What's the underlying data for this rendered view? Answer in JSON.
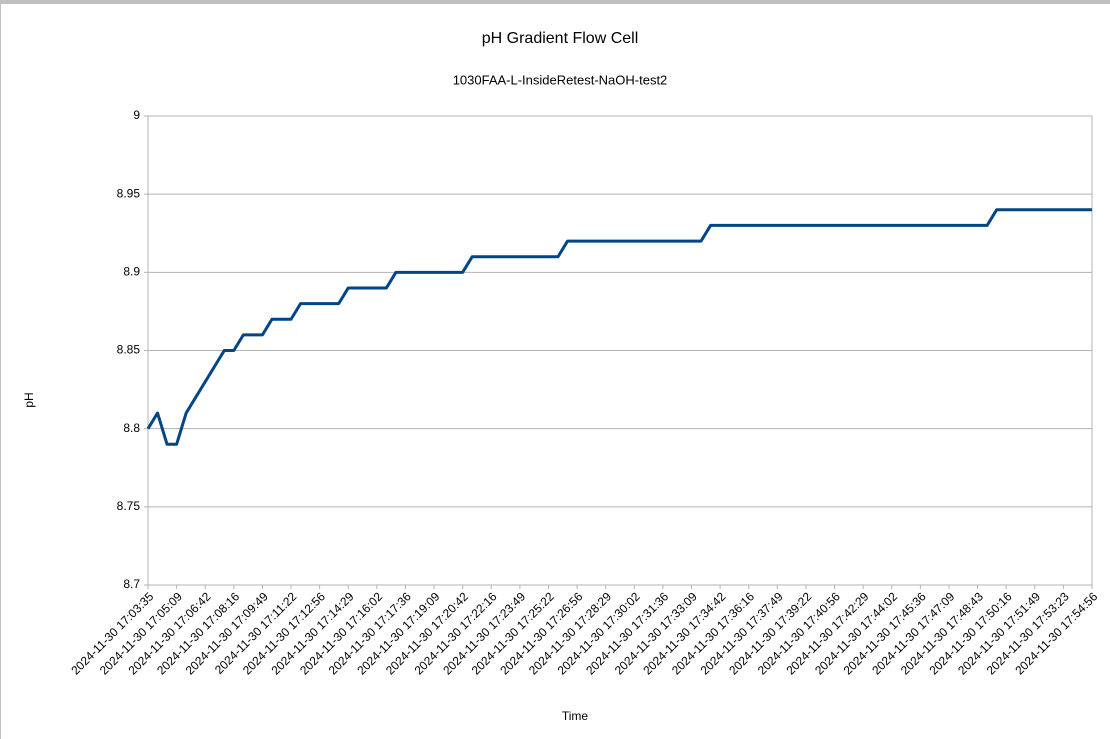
{
  "chart_data": {
    "type": "line",
    "title": "pH Gradient Flow Cell",
    "subtitle": "1030FAA-L-InsideRetest-NaOH-test2",
    "x_label": "Time",
    "y_label": "pH",
    "categories": [
      "2024-11-30 17:03:35",
      null,
      null,
      "2024-11-30 17:05:09",
      null,
      null,
      "2024-11-30 17:06:42",
      null,
      null,
      "2024-11-30 17:08:16",
      null,
      null,
      "2024-11-30 17:09:49",
      null,
      null,
      "2024-11-30 17:11:22",
      null,
      null,
      "2024-11-30 17:12:56",
      null,
      null,
      "2024-11-30 17:14:29",
      null,
      null,
      "2024-11-30 17:16:02",
      null,
      null,
      "2024-11-30 17:17:36",
      null,
      null,
      "2024-11-30 17:19:09",
      null,
      null,
      "2024-11-30 17:20:42",
      null,
      null,
      "2024-11-30 17:22:16",
      null,
      null,
      "2024-11-30 17:23:49",
      null,
      null,
      "2024-11-30 17:25:22",
      null,
      null,
      "2024-11-30 17:26:56",
      null,
      null,
      "2024-11-30 17:28:29",
      null,
      null,
      "2024-11-30 17:30:02",
      null,
      null,
      "2024-11-30 17:31:36",
      null,
      null,
      "2024-11-30 17:33:09",
      null,
      null,
      "2024-11-30 17:34:42",
      null,
      null,
      "2024-11-30 17:36:16",
      null,
      null,
      "2024-11-30 17:37:49",
      null,
      null,
      "2024-11-30 17:39:22",
      null,
      null,
      "2024-11-30 17:40:56",
      null,
      null,
      "2024-11-30 17:42:29",
      null,
      null,
      "2024-11-30 17:44:02",
      null,
      null,
      "2024-11-30 17:45:36",
      null,
      null,
      "2024-11-30 17:47:09",
      null,
      null,
      "2024-11-30 17:48:43",
      null,
      null,
      "2024-11-30 17:50:16",
      null,
      null,
      "2024-11-30 17:51:49",
      null,
      null,
      "2024-11-30 17:53:23",
      null,
      null,
      "2024-11-30 17:54:56"
    ],
    "values": [
      8.8,
      8.81,
      8.79,
      8.79,
      8.81,
      8.82,
      8.83,
      8.84,
      8.85,
      8.85,
      8.86,
      8.86,
      8.86,
      8.87,
      8.87,
      8.87,
      8.88,
      8.88,
      8.88,
      8.88,
      8.88,
      8.89,
      8.89,
      8.89,
      8.89,
      8.89,
      8.9,
      8.9,
      8.9,
      8.9,
      8.9,
      8.9,
      8.9,
      8.9,
      8.91,
      8.91,
      8.91,
      8.91,
      8.91,
      8.91,
      8.91,
      8.91,
      8.91,
      8.91,
      8.92,
      8.92,
      8.92,
      8.92,
      8.92,
      8.92,
      8.92,
      8.92,
      8.92,
      8.92,
      8.92,
      8.92,
      8.92,
      8.92,
      8.92,
      8.93,
      8.93,
      8.93,
      8.93,
      8.93,
      8.93,
      8.93,
      8.93,
      8.93,
      8.93,
      8.93,
      8.93,
      8.93,
      8.93,
      8.93,
      8.93,
      8.93,
      8.93,
      8.93,
      8.93,
      8.93,
      8.93,
      8.93,
      8.93,
      8.93,
      8.93,
      8.93,
      8.93,
      8.93,
      8.93,
      8.94,
      8.94,
      8.94,
      8.94,
      8.94,
      8.94,
      8.94,
      8.94,
      8.94,
      8.94,
      8.94
    ],
    "color": "#004586",
    "ylim": [
      8.7,
      9
    ],
    "yticks": [
      8.7,
      8.75,
      8.8,
      8.85,
      8.9,
      8.95,
      9
    ],
    "grid": true
  }
}
